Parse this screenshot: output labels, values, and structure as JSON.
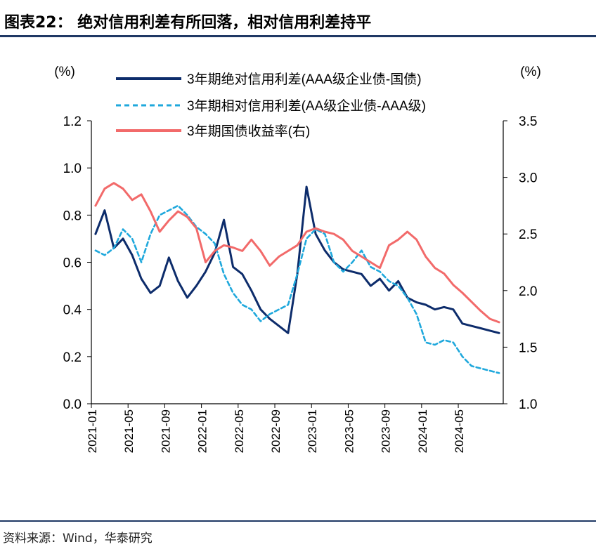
{
  "header": {
    "title": "图表22： 绝对信用利差有所回落，相对信用利差持平"
  },
  "footer": {
    "source": "资料来源：Wind，华泰研究"
  },
  "colors": {
    "rule": "#1f3864",
    "abs_spread": "#0d2c6b",
    "rel_spread": "#1fa8dc",
    "treasury": "#f26a6a"
  },
  "chart_data": {
    "type": "line",
    "left_axis": {
      "unit_label": "(%)",
      "ylim": [
        0.0,
        1.2
      ],
      "ticks": [
        "0.0",
        "0.2",
        "0.4",
        "0.6",
        "0.8",
        "1.0",
        "1.2"
      ]
    },
    "right_axis": {
      "unit_label": "(%)",
      "ylim": [
        1.0,
        3.5
      ],
      "ticks": [
        "1.0",
        "1.5",
        "2.0",
        "2.5",
        "3.0",
        "3.5"
      ]
    },
    "x_tick_labels": [
      "2021-01",
      "2021-05",
      "2021-09",
      "2022-01",
      "2022-05",
      "2022-09",
      "2023-01",
      "2023-05",
      "2023-09",
      "2024-01",
      "2024-05"
    ],
    "x_range": [
      "2021-01",
      "2024-09"
    ],
    "grid": false,
    "legend_position": "top",
    "series": [
      {
        "name": "3年期绝对信用利差(AAA级企业债-国债)",
        "axis": "left",
        "style": "solid",
        "color_key": "abs_spread",
        "points": [
          [
            "2021-01",
            0.72
          ],
          [
            "2021-02",
            0.82
          ],
          [
            "2021-03",
            0.66
          ],
          [
            "2021-04",
            0.7
          ],
          [
            "2021-05",
            0.63
          ],
          [
            "2021-06",
            0.53
          ],
          [
            "2021-07",
            0.47
          ],
          [
            "2021-08",
            0.5
          ],
          [
            "2021-09",
            0.62
          ],
          [
            "2021-10",
            0.52
          ],
          [
            "2021-11",
            0.45
          ],
          [
            "2021-12",
            0.5
          ],
          [
            "2022-01",
            0.56
          ],
          [
            "2022-02",
            0.64
          ],
          [
            "2022-03",
            0.78
          ],
          [
            "2022-04",
            0.58
          ],
          [
            "2022-05",
            0.55
          ],
          [
            "2022-06",
            0.48
          ],
          [
            "2022-07",
            0.4
          ],
          [
            "2022-08",
            0.36
          ],
          [
            "2022-09",
            0.33
          ],
          [
            "2022-10",
            0.3
          ],
          [
            "2022-11",
            0.55
          ],
          [
            "2022-12",
            0.92
          ],
          [
            "2023-01",
            0.72
          ],
          [
            "2023-02",
            0.65
          ],
          [
            "2023-03",
            0.6
          ],
          [
            "2023-04",
            0.57
          ],
          [
            "2023-05",
            0.56
          ],
          [
            "2023-06",
            0.55
          ],
          [
            "2023-07",
            0.5
          ],
          [
            "2023-08",
            0.53
          ],
          [
            "2023-09",
            0.48
          ],
          [
            "2023-10",
            0.52
          ],
          [
            "2023-11",
            0.45
          ],
          [
            "2023-12",
            0.43
          ],
          [
            "2024-01",
            0.42
          ],
          [
            "2024-02",
            0.4
          ],
          [
            "2024-03",
            0.41
          ],
          [
            "2024-04",
            0.4
          ],
          [
            "2024-05",
            0.34
          ],
          [
            "2024-06",
            0.33
          ],
          [
            "2024-07",
            0.32
          ],
          [
            "2024-08",
            0.31
          ],
          [
            "2024-09",
            0.3
          ]
        ]
      },
      {
        "name": "3年期相对信用利差(AA级企业债-AAA级)",
        "axis": "left",
        "style": "dashed",
        "color_key": "rel_spread",
        "points": [
          [
            "2021-01",
            0.65
          ],
          [
            "2021-02",
            0.63
          ],
          [
            "2021-03",
            0.66
          ],
          [
            "2021-04",
            0.74
          ],
          [
            "2021-05",
            0.7
          ],
          [
            "2021-06",
            0.6
          ],
          [
            "2021-07",
            0.72
          ],
          [
            "2021-08",
            0.8
          ],
          [
            "2021-09",
            0.82
          ],
          [
            "2021-10",
            0.84
          ],
          [
            "2021-11",
            0.8
          ],
          [
            "2021-12",
            0.75
          ],
          [
            "2022-01",
            0.72
          ],
          [
            "2022-02",
            0.68
          ],
          [
            "2022-03",
            0.55
          ],
          [
            "2022-04",
            0.47
          ],
          [
            "2022-05",
            0.42
          ],
          [
            "2022-06",
            0.4
          ],
          [
            "2022-07",
            0.35
          ],
          [
            "2022-08",
            0.38
          ],
          [
            "2022-09",
            0.4
          ],
          [
            "2022-10",
            0.42
          ],
          [
            "2022-11",
            0.55
          ],
          [
            "2022-12",
            0.7
          ],
          [
            "2023-01",
            0.74
          ],
          [
            "2023-02",
            0.72
          ],
          [
            "2023-03",
            0.6
          ],
          [
            "2023-04",
            0.56
          ],
          [
            "2023-05",
            0.6
          ],
          [
            "2023-06",
            0.65
          ],
          [
            "2023-07",
            0.58
          ],
          [
            "2023-08",
            0.56
          ],
          [
            "2023-09",
            0.52
          ],
          [
            "2023-10",
            0.5
          ],
          [
            "2023-11",
            0.45
          ],
          [
            "2023-12",
            0.38
          ],
          [
            "2024-01",
            0.26
          ],
          [
            "2024-02",
            0.25
          ],
          [
            "2024-03",
            0.27
          ],
          [
            "2024-04",
            0.26
          ],
          [
            "2024-05",
            0.2
          ],
          [
            "2024-06",
            0.16
          ],
          [
            "2024-07",
            0.15
          ],
          [
            "2024-08",
            0.14
          ],
          [
            "2024-09",
            0.13
          ]
        ]
      },
      {
        "name": "3年期国债收益率(右)",
        "axis": "right",
        "style": "solid",
        "color_key": "treasury",
        "points": [
          [
            "2021-01",
            2.75
          ],
          [
            "2021-02",
            2.9
          ],
          [
            "2021-03",
            2.95
          ],
          [
            "2021-04",
            2.9
          ],
          [
            "2021-05",
            2.8
          ],
          [
            "2021-06",
            2.85
          ],
          [
            "2021-07",
            2.7
          ],
          [
            "2021-08",
            2.52
          ],
          [
            "2021-09",
            2.62
          ],
          [
            "2021-10",
            2.7
          ],
          [
            "2021-11",
            2.65
          ],
          [
            "2021-12",
            2.55
          ],
          [
            "2022-01",
            2.25
          ],
          [
            "2022-02",
            2.35
          ],
          [
            "2022-03",
            2.4
          ],
          [
            "2022-04",
            2.38
          ],
          [
            "2022-05",
            2.35
          ],
          [
            "2022-06",
            2.45
          ],
          [
            "2022-07",
            2.35
          ],
          [
            "2022-08",
            2.22
          ],
          [
            "2022-09",
            2.3
          ],
          [
            "2022-10",
            2.35
          ],
          [
            "2022-11",
            2.4
          ],
          [
            "2022-12",
            2.52
          ],
          [
            "2023-01",
            2.55
          ],
          [
            "2023-02",
            2.52
          ],
          [
            "2023-03",
            2.5
          ],
          [
            "2023-04",
            2.45
          ],
          [
            "2023-05",
            2.35
          ],
          [
            "2023-06",
            2.3
          ],
          [
            "2023-07",
            2.25
          ],
          [
            "2023-08",
            2.2
          ],
          [
            "2023-09",
            2.4
          ],
          [
            "2023-10",
            2.45
          ],
          [
            "2023-11",
            2.52
          ],
          [
            "2023-12",
            2.45
          ],
          [
            "2024-01",
            2.3
          ],
          [
            "2024-02",
            2.2
          ],
          [
            "2024-03",
            2.15
          ],
          [
            "2024-04",
            2.05
          ],
          [
            "2024-05",
            1.98
          ],
          [
            "2024-06",
            1.9
          ],
          [
            "2024-07",
            1.82
          ],
          [
            "2024-08",
            1.75
          ],
          [
            "2024-09",
            1.72
          ]
        ]
      }
    ]
  }
}
